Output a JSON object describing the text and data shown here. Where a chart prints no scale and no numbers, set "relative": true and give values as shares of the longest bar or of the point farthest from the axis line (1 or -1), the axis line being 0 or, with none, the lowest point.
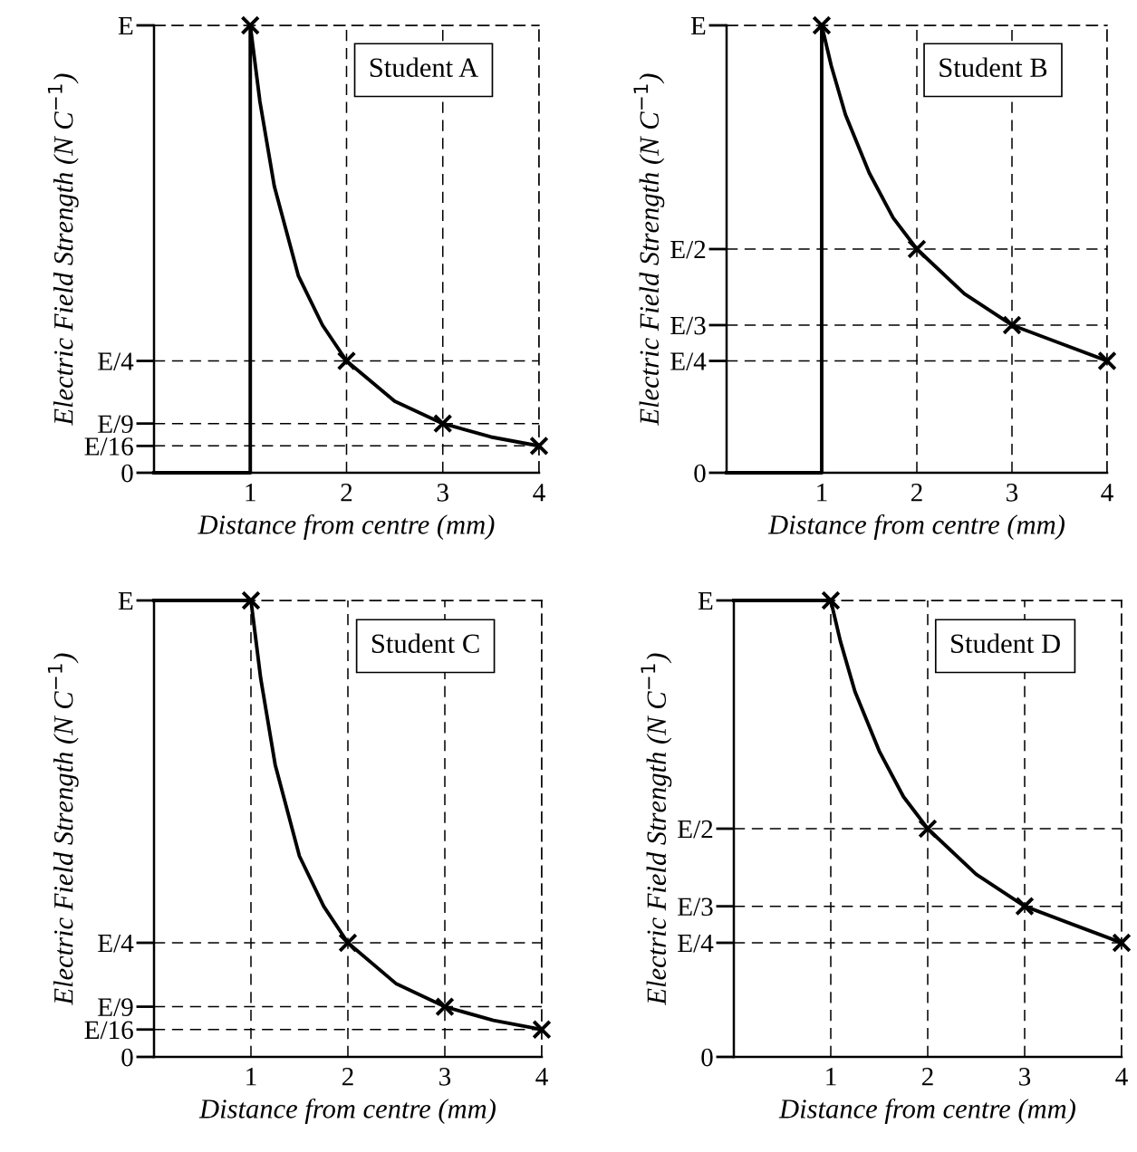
{
  "chart_data": [
    {
      "type": "line",
      "relative": true,
      "title": "Student A",
      "xlabel": "Distance from centre (mm)",
      "ylabel": "Electric Field Strength (N C$^{−1}$)",
      "xlim": [
        0,
        4
      ],
      "xticks": [
        1,
        2,
        3,
        4
      ],
      "grid": "x",
      "line_style": "solid",
      "ref_lines": [
        {
          "axis": "y",
          "value": 0,
          "label": "0"
        },
        {
          "axis": "y",
          "value": 0.06,
          "label": "E/16"
        },
        {
          "axis": "y",
          "value": 0.11,
          "label": "E/9"
        },
        {
          "axis": "y",
          "value": 0.25,
          "label": "E/4"
        },
        {
          "axis": "y",
          "value": 1,
          "label": "E"
        }
      ],
      "series": [
        {
          "color": "#000000",
          "x": [
            0,
            1,
            1,
            1.1,
            1.25,
            1.5,
            1.75,
            2,
            2.5,
            3,
            3.5,
            4
          ],
          "values": [
            0,
            0,
            1,
            0.83,
            0.64,
            0.44,
            0.33,
            0.25,
            0.16,
            0.11,
            0.08,
            0.06
          ]
        },
        {
          "type": "scatter",
          "marker": "cross",
          "color": "#000000",
          "x": [
            1,
            2,
            3,
            4
          ],
          "values": [
            1,
            0.25,
            0.11,
            0.06
          ]
        }
      ]
    },
    {
      "type": "line",
      "relative": true,
      "title": "Student B",
      "xlabel": "Distance from centre (mm)",
      "ylabel": "Electric Field Strength (N C$^{−1}$)",
      "xlim": [
        0,
        4
      ],
      "xticks": [
        1,
        2,
        3,
        4
      ],
      "grid": "x",
      "line_style": "solid",
      "ref_lines": [
        {
          "axis": "y",
          "value": 0,
          "label": "0"
        },
        {
          "axis": "y",
          "value": 0.25,
          "label": "E/4"
        },
        {
          "axis": "y",
          "value": 0.33,
          "label": "E/3"
        },
        {
          "axis": "y",
          "value": 0.5,
          "label": "E/2"
        },
        {
          "axis": "y",
          "value": 1,
          "label": "E"
        }
      ],
      "series": [
        {
          "color": "#000000",
          "x": [
            0,
            1,
            1,
            1.1,
            1.25,
            1.5,
            1.75,
            2,
            2.5,
            3,
            3.5,
            4
          ],
          "values": [
            0,
            0,
            1,
            0.91,
            0.8,
            0.67,
            0.57,
            0.5,
            0.4,
            0.33,
            0.29,
            0.25
          ]
        },
        {
          "type": "scatter",
          "marker": "cross",
          "color": "#000000",
          "x": [
            1,
            2,
            3,
            4
          ],
          "values": [
            1,
            0.5,
            0.33,
            0.25
          ]
        }
      ]
    },
    {
      "type": "line",
      "relative": true,
      "title": "Student C",
      "xlabel": "Distance from centre (mm)",
      "ylabel": "Electric Field Strength (N C$^{−1}$)",
      "xlim": [
        0,
        4
      ],
      "xticks": [
        1,
        2,
        3,
        4
      ],
      "grid": "x",
      "line_style": "solid",
      "ref_lines": [
        {
          "axis": "y",
          "value": 0,
          "label": "0"
        },
        {
          "axis": "y",
          "value": 0.06,
          "label": "E/16"
        },
        {
          "axis": "y",
          "value": 0.11,
          "label": "E/9"
        },
        {
          "axis": "y",
          "value": 0.25,
          "label": "E/4"
        },
        {
          "axis": "y",
          "value": 1,
          "label": "E"
        }
      ],
      "series": [
        {
          "color": "#000000",
          "x": [
            0,
            1,
            1.1,
            1.25,
            1.5,
            1.75,
            2,
            2.5,
            3,
            3.5,
            4
          ],
          "values": [
            1,
            1,
            0.83,
            0.64,
            0.44,
            0.33,
            0.25,
            0.16,
            0.11,
            0.08,
            0.06
          ]
        },
        {
          "type": "scatter",
          "marker": "cross",
          "color": "#000000",
          "x": [
            1,
            2,
            3,
            4
          ],
          "values": [
            1,
            0.25,
            0.11,
            0.06
          ]
        }
      ]
    },
    {
      "type": "line",
      "relative": true,
      "title": "Student D",
      "xlabel": "Distance from centre (mm)",
      "ylabel": "Electric Field Strength (N C$^{−1}$)",
      "xlim": [
        0,
        4
      ],
      "xticks": [
        1,
        2,
        3,
        4
      ],
      "grid": "x",
      "line_style": "solid",
      "ref_lines": [
        {
          "axis": "y",
          "value": 0,
          "label": "0"
        },
        {
          "axis": "y",
          "value": 0.25,
          "label": "E/4"
        },
        {
          "axis": "y",
          "value": 0.33,
          "label": "E/3"
        },
        {
          "axis": "y",
          "value": 0.5,
          "label": "E/2"
        },
        {
          "axis": "y",
          "value": 1,
          "label": "E"
        }
      ],
      "series": [
        {
          "color": "#000000",
          "x": [
            0,
            1,
            1.1,
            1.25,
            1.5,
            1.75,
            2,
            2.5,
            3,
            3.5,
            4
          ],
          "values": [
            1,
            1,
            0.91,
            0.8,
            0.67,
            0.57,
            0.5,
            0.4,
            0.33,
            0.29,
            0.25
          ]
        },
        {
          "type": "scatter",
          "marker": "cross",
          "color": "#000000",
          "x": [
            1,
            2,
            3,
            4
          ],
          "values": [
            1,
            0.5,
            0.33,
            0.25
          ]
        }
      ]
    }
  ]
}
